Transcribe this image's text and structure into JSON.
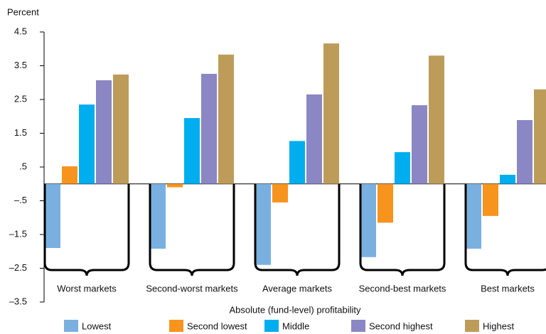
{
  "chart_data": {
    "type": "bar",
    "y_label": "Percent",
    "x_label": "Absolute (fund-level) profitability",
    "categories": [
      "Worst markets",
      "Second-worst markets",
      "Average markets",
      "Second-best markets",
      "Best markets"
    ],
    "series": [
      {
        "name": "Lowest",
        "color": "#7ab0e0",
        "values": [
          -1.9,
          -1.92,
          -2.4,
          -2.17,
          -1.92
        ]
      },
      {
        "name": "Second lowest",
        "color": "#f7941d",
        "values": [
          0.52,
          -0.1,
          -0.55,
          -1.15,
          -0.95
        ]
      },
      {
        "name": "Middle",
        "color": "#00aeef",
        "values": [
          2.35,
          1.95,
          1.27,
          0.94,
          0.27
        ]
      },
      {
        "name": "Second highest",
        "color": "#8b86c4",
        "values": [
          3.07,
          3.26,
          2.65,
          2.33,
          1.89
        ]
      },
      {
        "name": "Highest",
        "color": "#bd9c5a",
        "values": [
          3.24,
          3.83,
          4.16,
          3.8,
          2.8
        ]
      }
    ],
    "ylim": [
      -3.5,
      4.5
    ],
    "yticks": [
      {
        "value": -3.5,
        "label": "–3.5"
      },
      {
        "value": -2.5,
        "label": "–2.5"
      },
      {
        "value": -1.5,
        "label": "–1.5"
      },
      {
        "value": -0.5,
        "label": "–.5"
      },
      {
        "value": 0.5,
        "label": ".5"
      },
      1.5,
      2.5,
      3.5,
      4.5
    ]
  }
}
